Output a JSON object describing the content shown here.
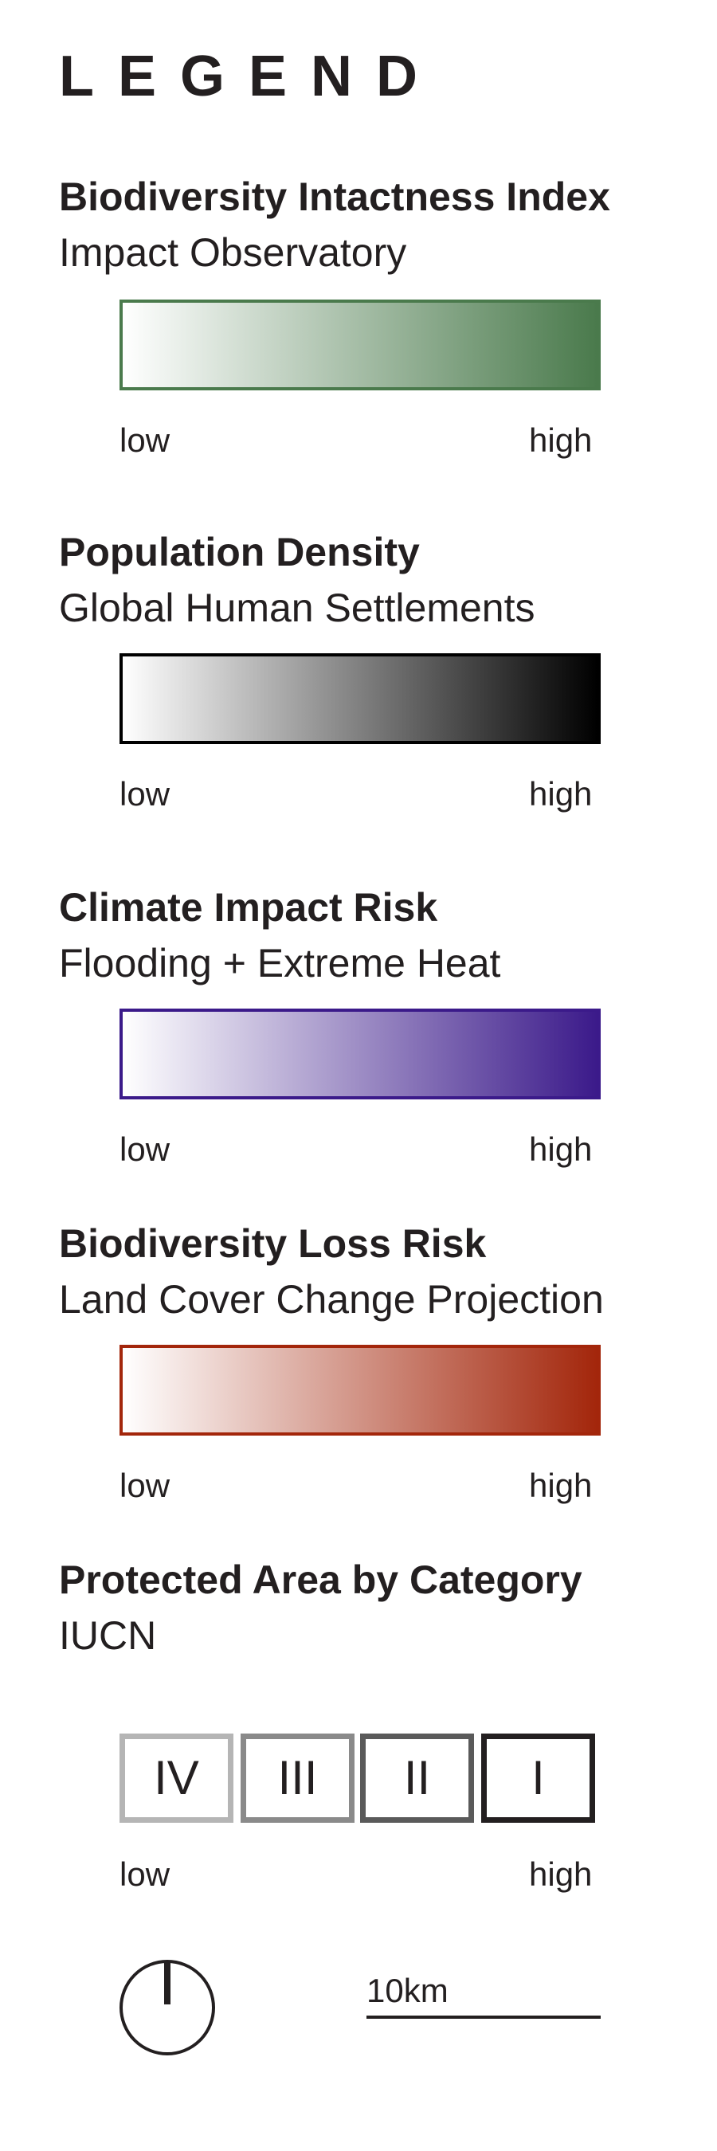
{
  "title": "LEGEND",
  "sections": [
    {
      "title": "Biodiversity Intactness Index",
      "subtitle": "Impact Observatory",
      "low_label": "low",
      "high_label": "high",
      "color_low": "#ffffff",
      "color_high": "#4a7a4c"
    },
    {
      "title": "Population Density",
      "subtitle": "Global Human Settlements",
      "low_label": "low",
      "high_label": "high",
      "color_low": "#ffffff",
      "color_high": "#000000"
    },
    {
      "title": "Climate Impact Risk",
      "subtitle": "Flooding + Extreme Heat",
      "low_label": "low",
      "high_label": "high",
      "color_low": "#ffffff",
      "color_high": "#3b1a8a"
    },
    {
      "title": "Biodiversity Loss Risk",
      "subtitle": "Land Cover Change Projection",
      "low_label": "low",
      "high_label": "high",
      "color_low": "#ffffff",
      "color_high": "#a3260b"
    }
  ],
  "protected": {
    "title": "Protected Area by Category",
    "subtitle": "IUCN",
    "categories": [
      {
        "label": "IV",
        "color": "#b5b5b5"
      },
      {
        "label": "III",
        "color": "#8a8a8a"
      },
      {
        "label": "II",
        "color": "#5a5a5a"
      },
      {
        "label": "I",
        "color": "#231f20"
      }
    ],
    "low_label": "low",
    "high_label": "high"
  },
  "scale": {
    "label": "10km"
  },
  "north_arrow": {
    "icon": "north-arrow-icon"
  }
}
